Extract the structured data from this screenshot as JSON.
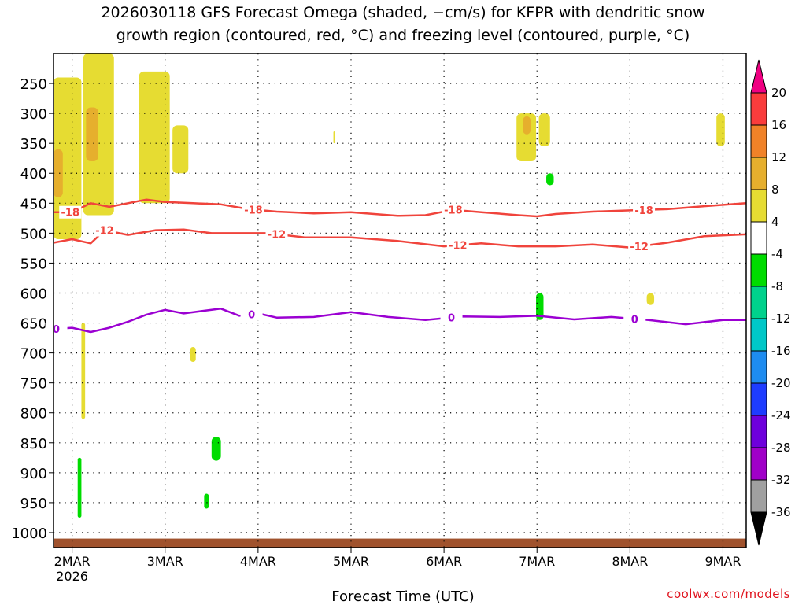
{
  "title_line1": "2026030118 GFS Forecast Omega (shaded, −cm/s) for KFPR with dendritic snow",
  "title_line2": "growth region (contoured, red, °C) and freezing level (contoured, purple, °C)",
  "xlabel": "Forecast Time (UTC)",
  "credit": "coolwx.com/models",
  "colors": {
    "dgz": "#f0443c",
    "freezing": "#9b00d2",
    "ground": "#a0522d",
    "grid": "#000000"
  },
  "chart_data": {
    "type": "heatmap",
    "title": "2026030118 GFS Forecast Omega (shaded, −cm/s) for KFPR with dendritic snow growth region (contoured, red, °C) and freezing level (contoured, purple, °C)",
    "xlabel": "Forecast Time (UTC)",
    "ylabel": "",
    "x_range_days": [
      1.8,
      9.25
    ],
    "y_range_hpa": [
      200,
      1025
    ],
    "x_ticks": [
      {
        "day": 2,
        "label": "2MAR",
        "sublabel": "2026"
      },
      {
        "day": 3,
        "label": "3MAR"
      },
      {
        "day": 4,
        "label": "4MAR"
      },
      {
        "day": 5,
        "label": "5MAR"
      },
      {
        "day": 6,
        "label": "6MAR"
      },
      {
        "day": 7,
        "label": "7MAR"
      },
      {
        "day": 8,
        "label": "8MAR"
      },
      {
        "day": 9,
        "label": "9MAR"
      }
    ],
    "y_ticks": [
      250,
      300,
      350,
      400,
      450,
      500,
      550,
      600,
      650,
      700,
      750,
      800,
      850,
      900,
      950,
      1000
    ],
    "colorbar": {
      "levels": [
        -36,
        -32,
        -28,
        -24,
        -20,
        -16,
        -12,
        -8,
        -4,
        4,
        8,
        12,
        16,
        20
      ],
      "colors": [
        "#a0a0a0",
        "#a000c8",
        "#6e00dc",
        "#1e3cff",
        "#1e8cf0",
        "#00c8c8",
        "#00d28c",
        "#00dc00",
        "#ffffff",
        "#e6dc32",
        "#e6af2d",
        "#f08228",
        "#fa3c3c",
        "#f00082"
      ],
      "under_color": "#000000",
      "over_color": "#f00082"
    },
    "contours": [
      {
        "name": "-18 C isotherm",
        "label": "-18",
        "label_days": [
          1.98,
          3.95,
          6.1,
          8.15
        ],
        "points": [
          [
            1.8,
            465
          ],
          [
            2.0,
            465
          ],
          [
            2.2,
            450
          ],
          [
            2.4,
            456
          ],
          [
            2.6,
            450
          ],
          [
            2.8,
            444
          ],
          [
            3.0,
            448
          ],
          [
            3.3,
            450
          ],
          [
            3.6,
            452
          ],
          [
            3.9,
            460
          ],
          [
            4.2,
            464
          ],
          [
            4.6,
            467
          ],
          [
            5.0,
            465
          ],
          [
            5.5,
            471
          ],
          [
            5.8,
            470
          ],
          [
            6.1,
            461
          ],
          [
            6.4,
            465
          ],
          [
            6.8,
            470
          ],
          [
            7.0,
            472
          ],
          [
            7.2,
            468
          ],
          [
            7.6,
            464
          ],
          [
            8.0,
            462
          ],
          [
            8.4,
            460
          ],
          [
            8.8,
            455
          ],
          [
            9.25,
            450
          ]
        ]
      },
      {
        "name": "-12 C isotherm",
        "label": "-12",
        "label_days": [
          2.35,
          4.2,
          6.15,
          8.1
        ],
        "points": [
          [
            1.8,
            516
          ],
          [
            2.0,
            510
          ],
          [
            2.2,
            517
          ],
          [
            2.35,
            495
          ],
          [
            2.6,
            503
          ],
          [
            2.9,
            495
          ],
          [
            3.2,
            494
          ],
          [
            3.5,
            500
          ],
          [
            3.8,
            500
          ],
          [
            4.1,
            500
          ],
          [
            4.5,
            507
          ],
          [
            5.0,
            507
          ],
          [
            5.5,
            513
          ],
          [
            6.0,
            522
          ],
          [
            6.4,
            517
          ],
          [
            6.8,
            522
          ],
          [
            7.2,
            522
          ],
          [
            7.6,
            519
          ],
          [
            8.0,
            524
          ],
          [
            8.4,
            516
          ],
          [
            8.8,
            505
          ],
          [
            9.25,
            502
          ]
        ]
      },
      {
        "name": "0 C freezing level",
        "label": "0",
        "label_days": [
          1.83,
          3.93,
          6.08,
          8.05
        ],
        "points": [
          [
            1.8,
            660
          ],
          [
            2.0,
            658
          ],
          [
            2.2,
            665
          ],
          [
            2.4,
            658
          ],
          [
            2.6,
            648
          ],
          [
            2.8,
            636
          ],
          [
            3.0,
            628
          ],
          [
            3.2,
            634
          ],
          [
            3.4,
            630
          ],
          [
            3.6,
            626
          ],
          [
            3.8,
            638
          ],
          [
            4.0,
            634
          ],
          [
            4.2,
            641
          ],
          [
            4.6,
            640
          ],
          [
            5.0,
            632
          ],
          [
            5.4,
            640
          ],
          [
            5.8,
            645
          ],
          [
            6.2,
            639
          ],
          [
            6.6,
            640
          ],
          [
            7.0,
            638
          ],
          [
            7.4,
            644
          ],
          [
            7.8,
            640
          ],
          [
            8.2,
            645
          ],
          [
            8.6,
            652
          ],
          [
            9.0,
            645
          ],
          [
            9.25,
            645
          ]
        ]
      }
    ],
    "omega_regions": [
      {
        "day_range": [
          1.8,
          2.1
        ],
        "p_range": [
          240,
          510
        ],
        "value": 6
      },
      {
        "day_range": [
          2.12,
          2.45
        ],
        "p_range": [
          200,
          470
        ],
        "value": 6
      },
      {
        "day_range": [
          2.15,
          2.28
        ],
        "p_range": [
          290,
          380
        ],
        "value": 10
      },
      {
        "day_range": [
          1.8,
          1.9
        ],
        "p_range": [
          360,
          440
        ],
        "value": 10
      },
      {
        "day_range": [
          2.72,
          3.05
        ],
        "p_range": [
          230,
          450
        ],
        "value": 5
      },
      {
        "day_range": [
          3.08,
          3.25
        ],
        "p_range": [
          320,
          400
        ],
        "value": 5
      },
      {
        "day_range": [
          4.81,
          4.83
        ],
        "p_range": [
          330,
          350
        ],
        "value": 5
      },
      {
        "day_range": [
          6.78,
          6.99
        ],
        "p_range": [
          300,
          380
        ],
        "value": 6
      },
      {
        "day_range": [
          6.85,
          6.93
        ],
        "p_range": [
          305,
          335
        ],
        "value": 9
      },
      {
        "day_range": [
          7.02,
          7.14
        ],
        "p_range": [
          300,
          355
        ],
        "value": 6
      },
      {
        "day_range": [
          8.93,
          9.02
        ],
        "p_range": [
          300,
          355
        ],
        "value": 5
      },
      {
        "day_range": [
          7.1,
          7.18
        ],
        "p_range": [
          400,
          420
        ],
        "value": -6
      },
      {
        "day_range": [
          6.99,
          7.07
        ],
        "p_range": [
          600,
          645
        ],
        "value": -6
      },
      {
        "day_range": [
          3.5,
          3.6
        ],
        "p_range": [
          840,
          880
        ],
        "value": -6
      },
      {
        "day_range": [
          3.42,
          3.47
        ],
        "p_range": [
          935,
          960
        ],
        "value": -6
      },
      {
        "day_range": [
          2.06,
          2.1
        ],
        "p_range": [
          875,
          975
        ],
        "value": -6
      },
      {
        "day_range": [
          2.1,
          2.14
        ],
        "p_range": [
          650,
          810
        ],
        "value": 5
      },
      {
        "day_range": [
          3.27,
          3.33
        ],
        "p_range": [
          690,
          715
        ],
        "value": 5
      },
      {
        "day_range": [
          8.18,
          8.26
        ],
        "p_range": [
          600,
          620
        ],
        "value": 5
      }
    ]
  }
}
